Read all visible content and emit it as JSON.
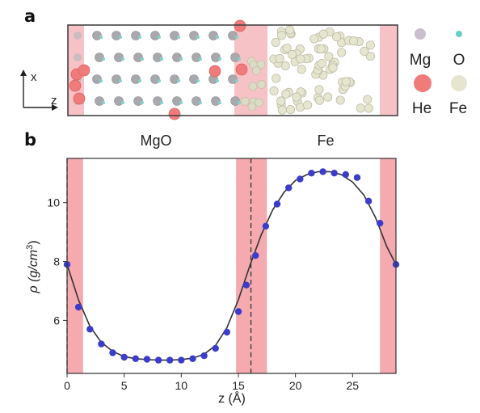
{
  "panel_a": {
    "label": "a",
    "axis_x": "x",
    "axis_z": "z",
    "region_left": "MgO",
    "region_right": "Fe",
    "legend": [
      {
        "label": "Mg",
        "color": "#c9bfcf",
        "icon": "mg-atom-icon"
      },
      {
        "label": "O",
        "color": "#66cfc6",
        "icon": "o-atom-icon"
      },
      {
        "label": "He",
        "color": "#f07b7b",
        "icon": "he-atom-icon"
      },
      {
        "label": "Fe",
        "color": "#e6e5cf",
        "icon": "fe-atom-icon"
      }
    ],
    "colors": {
      "shade": "#f5aab0",
      "box": "#444444",
      "mgo_atom": "#a9a9ad"
    }
  },
  "panel_b": {
    "label": "b"
  },
  "chart_data": {
    "type": "line",
    "xlabel": "z (Å)",
    "ylabel": "ρ (g/cm3)",
    "ylabel_parts": {
      "main": "ρ (g/cm",
      "sup": "3",
      "end": ")"
    },
    "xlim": [
      0,
      28.8
    ],
    "ylim": [
      4.2,
      11.5
    ],
    "xticks": [
      0,
      5,
      10,
      15,
      20,
      25
    ],
    "yticks": [
      6,
      8,
      10
    ],
    "shaded_regions": [
      [
        0,
        1.4
      ],
      [
        14.8,
        17.5
      ],
      [
        27.4,
        28.8
      ]
    ],
    "dashed_lines": [
      0,
      16.1
    ],
    "colors": {
      "points": "#3b3ccc",
      "line": "#333333",
      "shade": "#f5aab0"
    },
    "series": [
      {
        "kind": "points",
        "x": [
          0,
          1.0,
          2.0,
          3.0,
          4.0,
          5.0,
          6.0,
          7.0,
          8.0,
          9.0,
          10.0,
          11.0,
          12.0,
          13.0,
          14.0,
          15.0,
          15.7,
          16.5,
          17.4,
          18.4,
          19.4,
          20.4,
          21.4,
          22.4,
          23.4,
          24.4,
          25.4,
          26.4,
          27.4,
          28.8
        ],
        "y": [
          7.9,
          6.45,
          5.7,
          5.2,
          4.9,
          4.75,
          4.7,
          4.68,
          4.65,
          4.65,
          4.65,
          4.7,
          4.8,
          5.05,
          5.6,
          6.3,
          7.2,
          8.2,
          9.2,
          9.95,
          10.5,
          10.8,
          11.0,
          11.05,
          11.0,
          10.95,
          10.85,
          10.05,
          9.3,
          7.9
        ]
      },
      {
        "kind": "line",
        "x": [
          0,
          1,
          2,
          3,
          4,
          5,
          6,
          7,
          8,
          9,
          10,
          11,
          12,
          13,
          14,
          15,
          16,
          17,
          18,
          19,
          20,
          21,
          22,
          23,
          24,
          25,
          26,
          27,
          28,
          28.8
        ],
        "y": [
          7.9,
          6.7,
          5.8,
          5.25,
          4.95,
          4.77,
          4.7,
          4.67,
          4.65,
          4.65,
          4.67,
          4.72,
          4.85,
          5.15,
          5.75,
          6.7,
          7.85,
          8.9,
          9.75,
          10.35,
          10.75,
          10.95,
          11.05,
          11.05,
          10.95,
          10.7,
          10.25,
          9.5,
          8.5,
          7.9
        ]
      }
    ]
  }
}
